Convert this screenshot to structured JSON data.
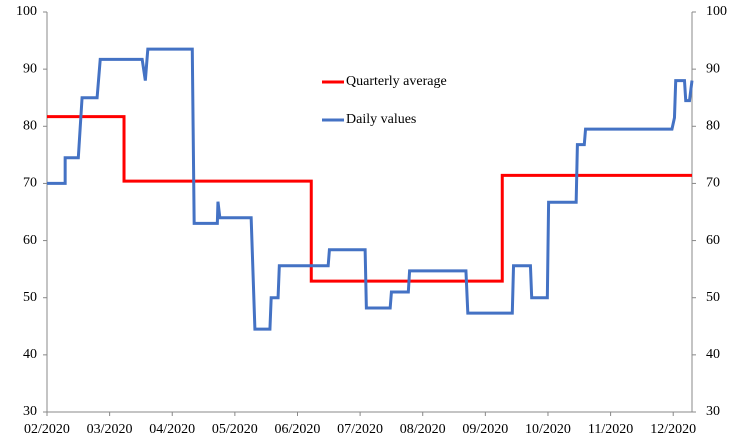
{
  "chart_data": {
    "type": "line",
    "xlim": [
      2,
      12.3
    ],
    "xticks": [
      {
        "value": 2,
        "label": "02/2020"
      },
      {
        "value": 3,
        "label": "03/2020"
      },
      {
        "value": 4,
        "label": "04/2020"
      },
      {
        "value": 5,
        "label": "05/2020"
      },
      {
        "value": 6,
        "label": "06/2020"
      },
      {
        "value": 7,
        "label": "07/2020"
      },
      {
        "value": 8,
        "label": "08/2020"
      },
      {
        "value": 9,
        "label": "09/2020"
      },
      {
        "value": 10,
        "label": "10/2020"
      },
      {
        "value": 11,
        "label": "11/2020"
      },
      {
        "value": 12,
        "label": "12/2020"
      }
    ],
    "ylim": [
      30,
      100
    ],
    "yticks": [
      30,
      40,
      50,
      60,
      70,
      80,
      90,
      100
    ],
    "y2lim": [
      30,
      100
    ],
    "y2ticks": [
      30,
      40,
      50,
      60,
      70,
      80,
      90,
      100
    ],
    "grid": false,
    "legend": "upper center",
    "series": [
      {
        "name": "Quarterly average",
        "color": "#ff0000",
        "x": [
          2,
          3.23,
          3.23,
          6.22,
          6.22,
          9.27,
          9.27,
          12.3
        ],
        "values": [
          81.7,
          81.7,
          70.4,
          70.4,
          52.9,
          52.9,
          71.4,
          71.4
        ]
      },
      {
        "name": "Daily values",
        "color": "#4472c4",
        "x": [
          2,
          2.29,
          2.29,
          2.5,
          2.56,
          2.8,
          2.85,
          3.52,
          3.57,
          3.61,
          4.32,
          4.35,
          4.72,
          4.73,
          4.76,
          5.26,
          5.32,
          5.56,
          5.58,
          5.69,
          5.71,
          6.49,
          6.51,
          7.08,
          7.1,
          7.48,
          7.5,
          7.77,
          7.79,
          8.69,
          8.72,
          9.43,
          9.45,
          9.72,
          9.74,
          9.99,
          10.01,
          10.45,
          10.47,
          10.58,
          10.6,
          11.98,
          12.02,
          12.04,
          12.18,
          12.2,
          12.26,
          12.3
        ],
        "values": [
          70,
          70,
          74.5,
          74.5,
          85,
          85,
          91.7,
          91.7,
          88,
          93.5,
          93.5,
          63,
          63,
          66.8,
          64,
          64,
          44.5,
          44.5,
          50,
          50,
          55.6,
          55.6,
          58.4,
          58.4,
          48.2,
          48.2,
          51,
          51,
          54.7,
          54.7,
          47.3,
          47.3,
          55.6,
          55.6,
          50,
          50,
          66.7,
          66.7,
          76.8,
          76.8,
          79.5,
          79.5,
          81.5,
          88,
          88,
          84.5,
          84.5,
          88
        ]
      }
    ]
  }
}
